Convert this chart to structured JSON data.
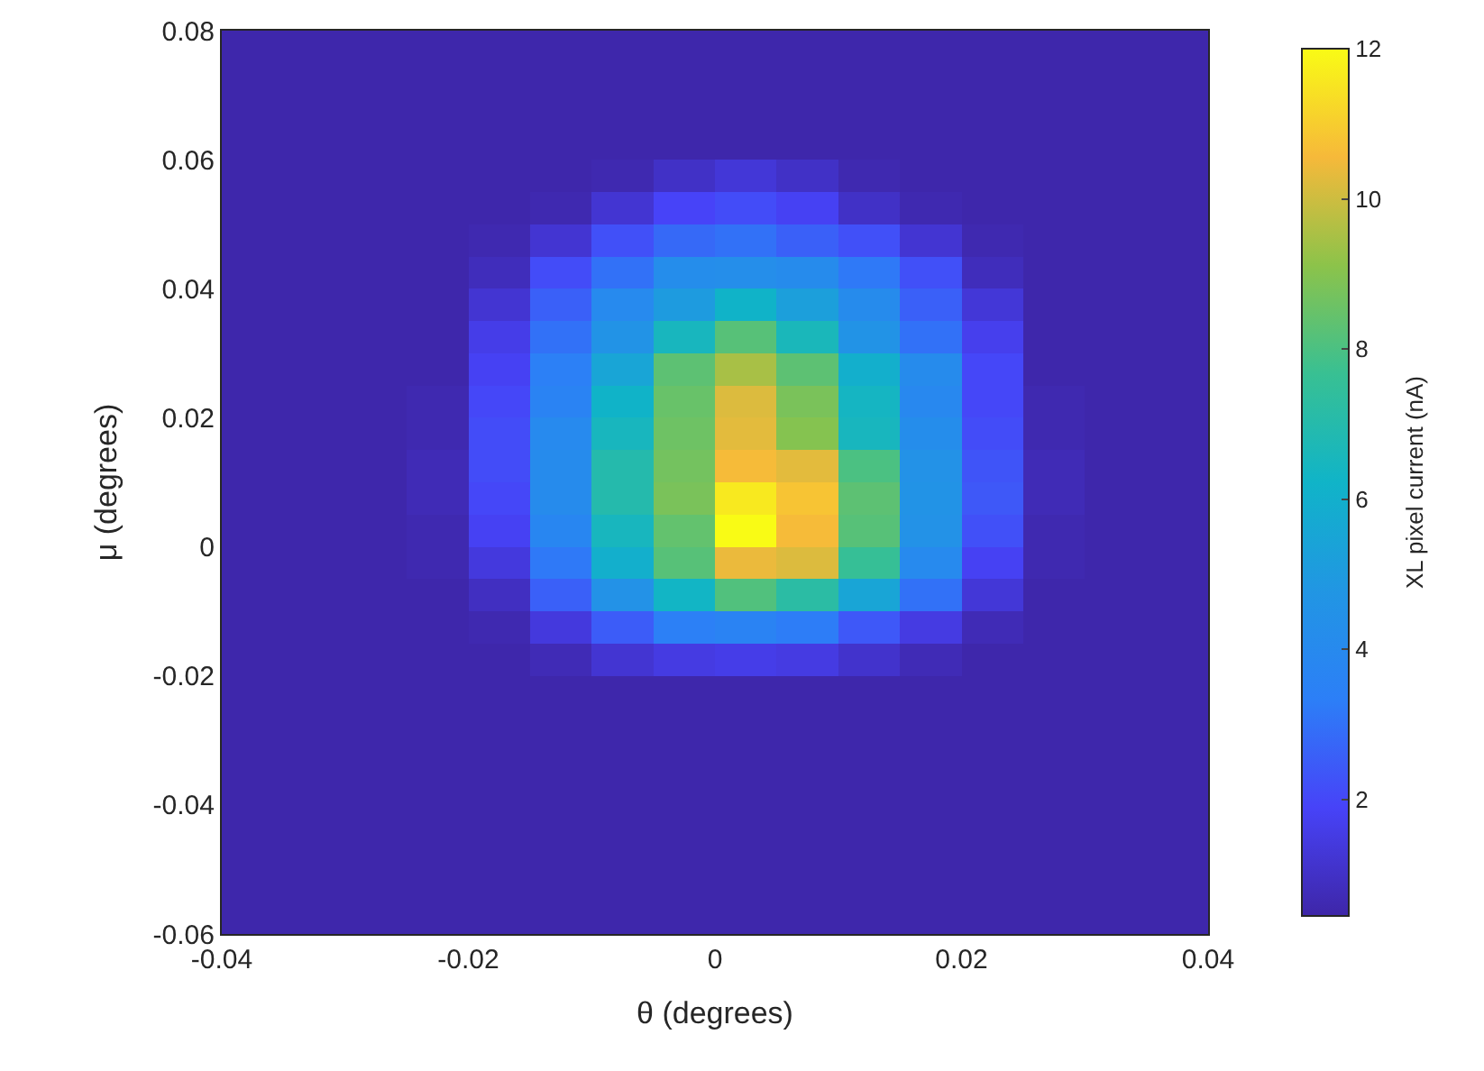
{
  "chart_data": {
    "type": "heatmap",
    "xlabel": "θ (degrees)",
    "ylabel": "μ (degrees)",
    "clabel": "XL pixel current (nA)",
    "x": [
      -0.0375,
      -0.0325,
      -0.0275,
      -0.0225,
      -0.0175,
      -0.0125,
      -0.0075,
      -0.0025,
      0.0025,
      0.0075,
      0.0125,
      0.0175,
      0.0225,
      0.0275,
      0.0325,
      0.0375
    ],
    "y": [
      0.0775,
      0.0725,
      0.0675,
      0.0625,
      0.0575,
      0.0525,
      0.0475,
      0.0425,
      0.0375,
      0.0325,
      0.0275,
      0.0225,
      0.0175,
      0.0125,
      0.0075,
      0.0025,
      -0.0025,
      -0.0075,
      -0.0125,
      -0.0175,
      -0.0225,
      -0.0275,
      -0.0325,
      -0.0375,
      -0.0425,
      -0.0475,
      -0.0525,
      -0.0575
    ],
    "cells": [
      [
        0.5,
        0.5,
        0.5,
        0.5,
        0.5,
        0.5,
        0.5,
        0.5,
        0.5,
        0.5,
        0.5,
        0.5,
        0.5,
        0.5,
        0.5,
        0.5
      ],
      [
        0.5,
        0.5,
        0.5,
        0.5,
        0.5,
        0.5,
        0.5,
        0.5,
        0.5,
        0.5,
        0.5,
        0.5,
        0.5,
        0.5,
        0.5,
        0.5
      ],
      [
        0.5,
        0.5,
        0.5,
        0.5,
        0.5,
        0.5,
        0.5,
        0.5,
        0.5,
        0.5,
        0.5,
        0.5,
        0.5,
        0.5,
        0.5,
        0.5
      ],
      [
        0.5,
        0.5,
        0.5,
        0.5,
        0.5,
        0.5,
        0.5,
        0.5,
        0.5,
        0.5,
        0.5,
        0.5,
        0.5,
        0.5,
        0.5,
        0.5
      ],
      [
        0.5,
        0.5,
        0.5,
        0.5,
        0.5,
        0.5,
        0.6,
        1.0,
        1.3,
        1.0,
        0.6,
        0.5,
        0.5,
        0.5,
        0.5,
        0.5
      ],
      [
        0.5,
        0.5,
        0.5,
        0.5,
        0.5,
        0.6,
        1.2,
        1.9,
        2.1,
        1.8,
        1.0,
        0.6,
        0.5,
        0.5,
        0.5,
        0.5
      ],
      [
        0.5,
        0.5,
        0.5,
        0.5,
        0.6,
        1.2,
        2.2,
        2.8,
        3.0,
        2.6,
        2.2,
        1.2,
        0.6,
        0.5,
        0.5,
        0.5
      ],
      [
        0.5,
        0.5,
        0.5,
        0.5,
        0.8,
        2.1,
        3.0,
        4.2,
        4.3,
        4.1,
        3.2,
        2.2,
        0.8,
        0.5,
        0.5,
        0.5
      ],
      [
        0.5,
        0.5,
        0.5,
        0.5,
        1.2,
        2.6,
        4.0,
        5.0,
        6.2,
        5.2,
        4.1,
        2.6,
        1.3,
        0.5,
        0.5,
        0.5
      ],
      [
        0.5,
        0.5,
        0.5,
        0.5,
        1.6,
        3.0,
        4.6,
        6.5,
        8.2,
        6.6,
        4.6,
        3.0,
        1.7,
        0.5,
        0.5,
        0.5
      ],
      [
        0.5,
        0.5,
        0.5,
        0.5,
        1.8,
        3.4,
        5.5,
        8.3,
        9.5,
        8.3,
        6.0,
        4.1,
        2.0,
        0.5,
        0.5,
        0.5
      ],
      [
        0.5,
        0.5,
        0.5,
        0.6,
        2.0,
        3.6,
        6.2,
        8.5,
        10.2,
        8.8,
        6.4,
        3.9,
        2.0,
        0.6,
        0.5,
        0.5
      ],
      [
        0.5,
        0.5,
        0.5,
        0.6,
        2.1,
        4.0,
        6.5,
        8.6,
        10.3,
        9.0,
        6.5,
        4.2,
        2.1,
        0.6,
        0.5,
        0.5
      ],
      [
        0.5,
        0.5,
        0.5,
        0.7,
        2.1,
        4.1,
        7.0,
        8.7,
        10.6,
        10.3,
        8.0,
        4.5,
        2.3,
        0.7,
        0.5,
        0.5
      ],
      [
        0.5,
        0.5,
        0.5,
        0.7,
        2.0,
        4.1,
        7.0,
        8.8,
        11.6,
        10.8,
        8.3,
        4.6,
        2.4,
        0.7,
        0.5,
        0.5
      ],
      [
        0.5,
        0.5,
        0.5,
        0.6,
        1.8,
        3.8,
        6.5,
        8.4,
        12,
        10.6,
        8.2,
        4.5,
        2.2,
        0.6,
        0.5,
        0.5
      ],
      [
        0.5,
        0.5,
        0.5,
        0.6,
        1.4,
        3.2,
        6.0,
        8.2,
        10.4,
        10.2,
        7.6,
        4.0,
        1.8,
        0.6,
        0.5,
        0.5
      ],
      [
        0.5,
        0.5,
        0.5,
        0.5,
        0.9,
        2.6,
        4.5,
        6.3,
        8.1,
        7.2,
        5.5,
        3.0,
        1.3,
        0.5,
        0.5,
        0.5
      ],
      [
        0.5,
        0.5,
        0.5,
        0.5,
        0.6,
        1.4,
        2.5,
        3.4,
        3.6,
        3.3,
        2.4,
        1.5,
        0.7,
        0.5,
        0.5,
        0.5
      ],
      [
        0.5,
        0.5,
        0.5,
        0.5,
        0.5,
        0.7,
        1.2,
        1.5,
        1.6,
        1.5,
        1.1,
        0.7,
        0.5,
        0.5,
        0.5,
        0.5
      ],
      [
        0.5,
        0.5,
        0.5,
        0.5,
        0.5,
        0.5,
        0.5,
        0.5,
        0.5,
        0.5,
        0.5,
        0.5,
        0.5,
        0.5,
        0.5,
        0.5
      ],
      [
        0.5,
        0.5,
        0.5,
        0.5,
        0.5,
        0.5,
        0.5,
        0.5,
        0.5,
        0.5,
        0.5,
        0.5,
        0.5,
        0.5,
        0.5,
        0.5
      ],
      [
        0.5,
        0.5,
        0.5,
        0.5,
        0.5,
        0.5,
        0.5,
        0.5,
        0.5,
        0.5,
        0.5,
        0.5,
        0.5,
        0.5,
        0.5,
        0.5
      ],
      [
        0.5,
        0.5,
        0.5,
        0.5,
        0.5,
        0.5,
        0.5,
        0.5,
        0.5,
        0.5,
        0.5,
        0.5,
        0.5,
        0.5,
        0.5,
        0.5
      ],
      [
        0.5,
        0.5,
        0.5,
        0.5,
        0.5,
        0.5,
        0.5,
        0.5,
        0.5,
        0.5,
        0.5,
        0.5,
        0.5,
        0.5,
        0.5,
        0.5
      ],
      [
        0.5,
        0.5,
        0.5,
        0.5,
        0.5,
        0.5,
        0.5,
        0.5,
        0.5,
        0.5,
        0.5,
        0.5,
        0.5,
        0.5,
        0.5,
        0.5
      ],
      [
        0.5,
        0.5,
        0.5,
        0.5,
        0.5,
        0.5,
        0.5,
        0.5,
        0.5,
        0.5,
        0.5,
        0.5,
        0.5,
        0.5,
        0.5,
        0.5
      ],
      [
        0.5,
        0.5,
        0.5,
        0.5,
        0.5,
        0.5,
        0.5,
        0.5,
        0.5,
        0.5,
        0.5,
        0.5,
        0.5,
        0.5,
        0.5,
        0.5
      ]
    ],
    "xlim": [
      -0.04,
      0.04
    ],
    "xticks": [
      -0.04,
      -0.02,
      0,
      0.02,
      0.04
    ],
    "ylim": [
      -0.06,
      0.08
    ],
    "yticks": [
      -0.06,
      -0.04,
      -0.02,
      0,
      0.02,
      0.04,
      0.06,
      0.08
    ],
    "clim": [
      0.45,
      12
    ],
    "cticks": [
      2,
      4,
      6,
      8,
      10,
      12
    ]
  }
}
